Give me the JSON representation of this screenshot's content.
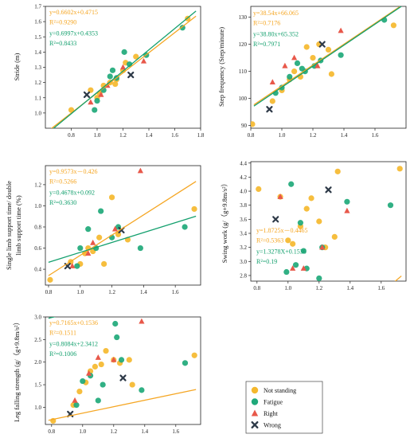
{
  "colors": {
    "not_standing": "#F5B82E",
    "fatigue": "#1FA97A",
    "right": "#E8584A",
    "wrong": "#2E3A48",
    "fit_not_standing": "#F5A623",
    "fit_fatigue": "#14A06E"
  },
  "legend": {
    "items": [
      {
        "label": "Not standing",
        "marker": "circle",
        "color": "#F5B82E"
      },
      {
        "label": "Fatigue",
        "marker": "circle",
        "color": "#1FA97A"
      },
      {
        "label": "Right",
        "marker": "triangle",
        "color": "#E8584A"
      },
      {
        "label": "Wrong",
        "marker": "cross",
        "color": "#2E3A48"
      }
    ]
  },
  "chart_data": [
    {
      "type": "scatter",
      "ylabel": "Stride (m)",
      "xlim": [
        0.6,
        1.8
      ],
      "ylim": [
        0.9,
        1.7
      ],
      "xticks": [
        "0.8",
        "1.0",
        "1.2",
        "1.4",
        "1.6",
        "1.8"
      ],
      "yticks": [
        "1.0",
        "1.1",
        "1.2",
        "1.3",
        "1.4",
        "1.5",
        "1.6",
        "1.7"
      ],
      "fits": [
        {
          "slope": 0.6602,
          "intercept": 0.4715,
          "equation": "y=0.6602x+0.4715",
          "r2": "R²=0.9290",
          "color": "#F5A623"
        },
        {
          "slope": 0.6997,
          "intercept": 0.4353,
          "equation": "y=0.6997x+0.4353",
          "r2": "R²=0.8433",
          "color": "#14A06E"
        }
      ],
      "series": [
        {
          "name": "Not standing",
          "points": [
            [
              0.8,
              1.02
            ],
            [
              0.95,
              1.15
            ],
            [
              1.0,
              1.1
            ],
            [
              1.02,
              1.13
            ],
            [
              1.05,
              1.18
            ],
            [
              1.1,
              1.2
            ],
            [
              1.14,
              1.19
            ],
            [
              1.15,
              1.22
            ],
            [
              1.2,
              1.28
            ],
            [
              1.22,
              1.33
            ],
            [
              1.3,
              1.37
            ],
            [
              1.7,
              1.62
            ]
          ]
        },
        {
          "name": "Fatigue",
          "points": [
            [
              0.98,
              1.02
            ],
            [
              1.0,
              1.08
            ],
            [
              1.05,
              1.15
            ],
            [
              1.1,
              1.24
            ],
            [
              1.12,
              1.28
            ],
            [
              1.15,
              1.23
            ],
            [
              1.21,
              1.4
            ],
            [
              1.25,
              1.32
            ],
            [
              1.38,
              1.38
            ],
            [
              1.66,
              1.56
            ]
          ]
        },
        {
          "name": "Right",
          "points": [
            [
              0.95,
              1.07
            ],
            [
              1.03,
              1.12
            ],
            [
              1.08,
              1.18
            ],
            [
              1.2,
              1.3
            ],
            [
              1.36,
              1.34
            ]
          ]
        },
        {
          "name": "Wrong",
          "points": [
            [
              0.92,
              1.12
            ],
            [
              1.26,
              1.25
            ]
          ]
        }
      ]
    },
    {
      "type": "scatter",
      "ylabel": "Step frequency (Step/minute)",
      "xlim": [
        0.8,
        1.8
      ],
      "ylim": [
        89,
        134
      ],
      "xticks": [
        "0.8",
        "1.0",
        "1.2",
        "1.4",
        "1.6"
      ],
      "yticks": [
        "90",
        "100",
        "110",
        "120",
        "130"
      ],
      "fits": [
        {
          "slope": 38.54,
          "intercept": 66.065,
          "equation": "y=38.54x+66.065",
          "r2": "R²=0.7176",
          "color": "#F5A623"
        },
        {
          "slope": 38.8,
          "intercept": 65.352,
          "equation": "y=38.80x+65.352",
          "r2": "R²=0.7971",
          "color": "#14A06E"
        }
      ],
      "series": [
        {
          "name": "Not standing",
          "points": [
            [
              0.81,
              90.5
            ],
            [
              0.94,
              99
            ],
            [
              1.0,
              103
            ],
            [
              1.05,
              107
            ],
            [
              1.08,
              110
            ],
            [
              1.12,
              108
            ],
            [
              1.16,
              119
            ],
            [
              1.2,
              115
            ],
            [
              1.24,
              120
            ],
            [
              1.3,
              118
            ],
            [
              1.32,
              109
            ],
            [
              1.72,
              127
            ]
          ]
        },
        {
          "name": "Fatigue",
          "points": [
            [
              0.96,
              102
            ],
            [
              1.0,
              104
            ],
            [
              1.05,
              108
            ],
            [
              1.1,
              113
            ],
            [
              1.13,
              111
            ],
            [
              1.15,
              110
            ],
            [
              1.21,
              112
            ],
            [
              1.25,
              114
            ],
            [
              1.38,
              116
            ],
            [
              1.66,
              129
            ]
          ]
        },
        {
          "name": "Right",
          "points": [
            [
              0.94,
              106
            ],
            [
              1.02,
              112
            ],
            [
              1.08,
              115
            ],
            [
              1.23,
              112
            ],
            [
              1.38,
              125
            ]
          ]
        },
        {
          "name": "Wrong",
          "points": [
            [
              0.92,
              96
            ],
            [
              1.26,
              120
            ]
          ]
        }
      ]
    },
    {
      "type": "scatter",
      "ylabel": "Single limb support time/ double limb support time (%)",
      "xlim": [
        0.78,
        1.76
      ],
      "ylim": [
        0.25,
        1.38
      ],
      "xticks": [
        "0.8",
        "1.0",
        "1.2",
        "1.4",
        "1.6"
      ],
      "yticks": [
        "0.4",
        "0.6",
        "0.8",
        "1.0",
        "1.2"
      ],
      "fits": [
        {
          "slope": 0.9573,
          "intercept": -0.426,
          "equation": "y=0.9573x－0.426",
          "r2": "R²=0.5266",
          "color": "#F5A623"
        },
        {
          "slope": 0.4678,
          "intercept": 0.092,
          "equation": "y=0.4678x+0.092",
          "r2": "R²=0.3630",
          "color": "#14A06E"
        }
      ],
      "series": [
        {
          "name": "Not standing",
          "points": [
            [
              0.81,
              0.3
            ],
            [
              0.94,
              0.47
            ],
            [
              1.0,
              0.45
            ],
            [
              1.03,
              0.55
            ],
            [
              1.05,
              0.6
            ],
            [
              1.08,
              0.57
            ],
            [
              1.12,
              0.7
            ],
            [
              1.15,
              0.45
            ],
            [
              1.2,
              1.08
            ],
            [
              1.24,
              0.73
            ],
            [
              1.3,
              0.68
            ],
            [
              1.72,
              0.97
            ]
          ]
        },
        {
          "name": "Fatigue",
          "points": [
            [
              0.98,
              0.43
            ],
            [
              1.0,
              0.6
            ],
            [
              1.05,
              0.78
            ],
            [
              1.1,
              0.6
            ],
            [
              1.13,
              0.95
            ],
            [
              1.2,
              0.7
            ],
            [
              1.24,
              0.8
            ],
            [
              1.38,
              0.6
            ],
            [
              1.66,
              0.8
            ]
          ]
        },
        {
          "name": "Right",
          "points": [
            [
              0.95,
              0.43
            ],
            [
              1.05,
              0.55
            ],
            [
              1.08,
              0.65
            ],
            [
              1.22,
              0.78
            ],
            [
              1.38,
              1.33
            ]
          ]
        },
        {
          "name": "Wrong",
          "points": [
            [
              0.92,
              0.43
            ],
            [
              1.26,
              0.77
            ]
          ]
        }
      ]
    },
    {
      "type": "scatter",
      "ylabel": "Swing work (g/（g+9.8m/s²）",
      "xlim": [
        0.76,
        1.76
      ],
      "ylim": [
        2.72,
        4.42
      ],
      "xticks": [
        "0.8",
        "1.0",
        "1.2",
        "1.4",
        "1.6"
      ],
      "yticks": [
        "2.8",
        "3.0",
        "3.2",
        "3.4",
        "3.6",
        "3.8",
        "4.0",
        "4.2",
        "4.4"
      ],
      "fits": [
        {
          "slope": 1.8725,
          "intercept": -0.4465,
          "equation": "y=1.8725x－0.4465",
          "r2": "R²=0.5363",
          "color": "#F5A623"
        },
        {
          "slope": 1.3278,
          "intercept": 0.1536,
          "equation": "y=1.3278X+0.1536",
          "r2": "R²=0.19",
          "color": "#14A06E"
        }
      ],
      "series": [
        {
          "name": "Not standing",
          "points": [
            [
              0.81,
              4.03
            ],
            [
              0.95,
              3.92
            ],
            [
              1.0,
              3.3
            ],
            [
              1.03,
              3.25
            ],
            [
              1.08,
              3.5
            ],
            [
              1.12,
              3.75
            ],
            [
              1.15,
              3.9
            ],
            [
              1.2,
              3.57
            ],
            [
              1.24,
              3.2
            ],
            [
              1.3,
              3.35
            ],
            [
              1.32,
              4.28
            ],
            [
              1.72,
              4.32
            ]
          ]
        },
        {
          "name": "Fatigue",
          "points": [
            [
              0.99,
              2.85
            ],
            [
              1.02,
              4.1
            ],
            [
              1.05,
              2.95
            ],
            [
              1.08,
              3.55
            ],
            [
              1.1,
              3.15
            ],
            [
              1.12,
              2.9
            ],
            [
              1.2,
              2.76
            ],
            [
              1.22,
              3.2
            ],
            [
              1.38,
              3.85
            ],
            [
              1.66,
              3.8
            ]
          ]
        },
        {
          "name": "Right",
          "points": [
            [
              0.95,
              3.92
            ],
            [
              1.03,
              2.9
            ],
            [
              1.1,
              2.9
            ],
            [
              1.22,
              3.2
            ],
            [
              1.38,
              3.72
            ]
          ]
        },
        {
          "name": "Wrong",
          "points": [
            [
              0.92,
              3.6
            ],
            [
              1.26,
              4.02
            ]
          ]
        }
      ]
    },
    {
      "type": "scatter",
      "ylabel": "Leg falling strength (g/（g+9.8m/s²）",
      "xlim": [
        0.76,
        1.76
      ],
      "ylim": [
        0.62,
        3.0
      ],
      "xticks": [
        "0.8",
        "1.0",
        "1.2",
        "1.4",
        "1.6"
      ],
      "yticks": [
        "1.0",
        "1.5",
        "2.0",
        "2.5",
        "3.0"
      ],
      "fits": [
        {
          "slope": 0.7165,
          "intercept": 0.1536,
          "equation": "y=0.7165x+0.1536",
          "r2": "R²=0.1511",
          "color": "#F5A623"
        },
        {
          "slope": 0.8084,
          "intercept": 2.3412,
          "equation": "y=0.8084x+2.3412",
          "r2": "R²=0.1006",
          "color": "#14A06E"
        }
      ],
      "series": [
        {
          "name": "Not standing",
          "points": [
            [
              0.81,
              0.7
            ],
            [
              0.94,
              1.05
            ],
            [
              0.98,
              1.35
            ],
            [
              1.02,
              1.55
            ],
            [
              1.05,
              1.8
            ],
            [
              1.08,
              1.9
            ],
            [
              1.12,
              1.95
            ],
            [
              1.15,
              2.25
            ],
            [
              1.2,
              2.05
            ],
            [
              1.24,
              1.98
            ],
            [
              1.3,
              2.05
            ],
            [
              1.32,
              1.5
            ],
            [
              1.72,
              2.15
            ]
          ]
        },
        {
          "name": "Fatigue",
          "points": [
            [
              0.96,
              1.05
            ],
            [
              1.0,
              1.58
            ],
            [
              1.05,
              1.7
            ],
            [
              1.1,
              1.15
            ],
            [
              1.13,
              1.5
            ],
            [
              1.21,
              2.85
            ],
            [
              1.22,
              2.55
            ],
            [
              1.25,
              2.05
            ],
            [
              1.38,
              1.38
            ],
            [
              1.66,
              1.98
            ]
          ]
        },
        {
          "name": "Right",
          "points": [
            [
              0.95,
              1.15
            ],
            [
              1.04,
              1.75
            ],
            [
              1.1,
              2.1
            ],
            [
              1.2,
              2.05
            ],
            [
              1.38,
              2.9
            ]
          ]
        },
        {
          "name": "Wrong",
          "points": [
            [
              0.92,
              0.85
            ],
            [
              1.26,
              1.65
            ]
          ]
        }
      ]
    }
  ]
}
